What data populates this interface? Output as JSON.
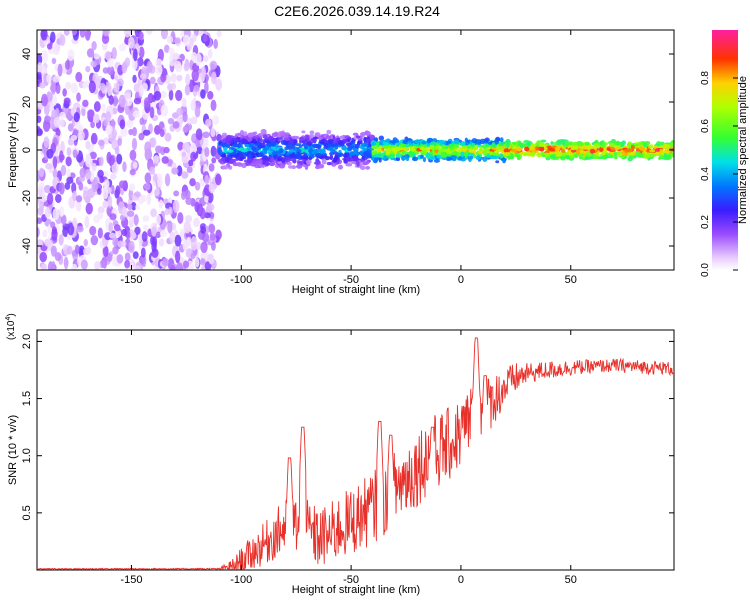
{
  "title": "C2E6.2026.039.14.19.R24",
  "colors": {
    "snr_line": "#e8302a",
    "axis": "#000000",
    "background": "#ffffff"
  },
  "chart_data": [
    {
      "type": "heatmap",
      "name": "spectrogram",
      "xlabel": "Height of straight line (km)",
      "ylabel": "Frequency (Hz)",
      "xlim": [
        -193,
        97
      ],
      "ylim": [
        -50,
        50
      ],
      "x_ticks": [
        -150,
        -100,
        -50,
        0,
        50
      ],
      "y_ticks": [
        -40,
        -20,
        0,
        20,
        40
      ],
      "regions": [
        {
          "x_range": [
            -193,
            -110
          ],
          "frequency_spread": [
            -50,
            50
          ],
          "amplitude_range": [
            0.02,
            0.2
          ],
          "description": "noise"
        },
        {
          "x_range": [
            -110,
            -40
          ],
          "frequency_center": 0,
          "frequency_halfwidth": [
            5,
            8
          ],
          "amplitude_range": [
            0.1,
            0.5
          ]
        },
        {
          "x_range": [
            -40,
            20
          ],
          "frequency_center": 0,
          "frequency_halfwidth": [
            3,
            5
          ],
          "amplitude_range": [
            0.3,
            0.9
          ]
        },
        {
          "x_range": [
            20,
            97
          ],
          "frequency_center": 0,
          "frequency_halfwidth": [
            2,
            4
          ],
          "amplitude_range": [
            0.5,
            1.0
          ]
        }
      ],
      "colorbar": {
        "label": "Normalized spectral amplitude",
        "range": [
          0,
          1
        ],
        "ticks": [
          "0.0",
          "0.2",
          "0.4",
          "0.6",
          "0.8"
        ],
        "tick_values": [
          0,
          0.2,
          0.4,
          0.6,
          0.8
        ]
      }
    },
    {
      "type": "line",
      "name": "snr",
      "xlabel": "Height of straight line (km)",
      "ylabel": "SNR (10 * v/v)",
      "scale_label": "(x10",
      "scale_exponent": "4",
      "scale_close": ")",
      "xlim": [
        -193,
        97
      ],
      "ylim": [
        0,
        2.1
      ],
      "x_ticks": [
        -150,
        -100,
        -50,
        0,
        50
      ],
      "y_ticks": [
        0.5,
        1.0,
        1.5,
        2.0
      ],
      "y_tick_labels": [
        "0.5",
        "1.0",
        "1.5",
        "2.0"
      ],
      "envelope": {
        "x": [
          -193,
          -110,
          -103,
          -100,
          -95,
          -90,
          -85,
          -80,
          -75,
          -70,
          -65,
          -60,
          -55,
          -50,
          -45,
          -40,
          -35,
          -30,
          -25,
          -20,
          -15,
          -10,
          -5,
          0,
          5,
          10,
          15,
          20,
          25,
          30,
          40,
          50,
          60,
          70,
          80,
          90,
          97
        ],
        "y": [
          0.01,
          0.01,
          0.03,
          0.08,
          0.15,
          0.22,
          0.3,
          0.38,
          0.4,
          0.35,
          0.28,
          0.3,
          0.38,
          0.42,
          0.48,
          0.55,
          0.62,
          0.72,
          0.8,
          0.9,
          1.0,
          1.05,
          1.1,
          1.2,
          1.35,
          1.4,
          1.5,
          1.6,
          1.68,
          1.72,
          1.75,
          1.77,
          1.78,
          1.79,
          1.78,
          1.77,
          1.76
        ]
      },
      "noise_amplitude": {
        "x": [
          -193,
          -110,
          -100,
          -80,
          -60,
          -40,
          -20,
          0,
          10,
          20,
          30,
          60,
          97
        ],
        "y": [
          0.004,
          0.006,
          0.12,
          0.25,
          0.28,
          0.32,
          0.35,
          0.32,
          0.28,
          0.18,
          0.09,
          0.06,
          0.06
        ]
      },
      "peaks": [
        {
          "x": -78,
          "y": 0.98
        },
        {
          "x": -72,
          "y": 1.25
        },
        {
          "x": -37,
          "y": 1.3
        },
        {
          "x": -32,
          "y": 1.18
        },
        {
          "x": -13,
          "y": 1.25
        },
        {
          "x": 7,
          "y": 2.03
        },
        {
          "x": 11,
          "y": 1.7
        }
      ]
    }
  ]
}
